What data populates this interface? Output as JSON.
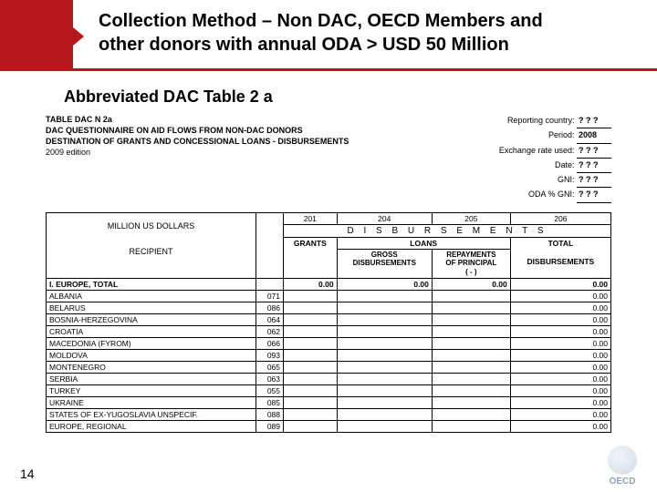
{
  "header": {
    "title_line1": "Collection Method – Non DAC, OECD Members and",
    "title_line2": "other donors with annual ODA > USD 50 Million"
  },
  "subtitle": "Abbreviated DAC Table 2 a",
  "form_header": {
    "table_label": "TABLE DAC N 2a",
    "q_line": "DAC QUESTIONNAIRE ON AID FLOWS FROM NON-DAC DONORS",
    "dest_line": "DESTINATION OF GRANTS AND CONCESSIONAL LOANS - DISBURSEMENTS",
    "edition": "2009 edition"
  },
  "meta": {
    "reporting_country_label": "Reporting country:",
    "reporting_country": "? ? ?",
    "period_label": "Period:",
    "period": "2008",
    "exchange_label": "Exchange rate used:",
    "exchange": "? ? ?",
    "date_label": "Date:",
    "date": "? ? ?",
    "gni_label": "GNI:",
    "gni": "? ? ?",
    "oda_gni_label": "ODA % GNI:",
    "oda_gni": "? ? ?"
  },
  "table": {
    "million_label": "MILLION US DOLLARS",
    "recipient_label": "RECIPIENT",
    "col_codes": [
      "201",
      "204",
      "205",
      "206"
    ],
    "disb_header": "D I S B U R S E M E N T S",
    "grants_label": "GRANTS",
    "loans_label": "LOANS",
    "total_label": "TOTAL",
    "gross_disb_label_l1": "GROSS",
    "gross_disb_label_l2": "DISBURSEMENTS",
    "repay_label_l1": "REPAYMENTS",
    "repay_label_l2": "OF PRINCIPAL",
    "repay_label_l3": "( - )",
    "disb_sub_label": "DISBURSEMENTS",
    "region": {
      "name": "I. EUROPE, TOTAL",
      "grants": "0.00",
      "gross": "0.00",
      "repay": "0.00",
      "total": "0.00"
    },
    "countries": [
      {
        "name": "ALBANIA",
        "code": "071",
        "total": "0.00"
      },
      {
        "name": "BELARUS",
        "code": "086",
        "total": "0.00"
      },
      {
        "name": "BOSNIA-HERZEGOVINA",
        "code": "064",
        "total": "0.00"
      },
      {
        "name": "CROATIA",
        "code": "062",
        "total": "0.00"
      },
      {
        "name": "MACEDONIA (FYROM)",
        "code": "066",
        "total": "0.00"
      },
      {
        "name": "MOLDOVA",
        "code": "093",
        "total": "0.00"
      },
      {
        "name": "MONTENEGRO",
        "code": "065",
        "total": "0.00"
      },
      {
        "name": "SERBIA",
        "code": "063",
        "total": "0.00"
      },
      {
        "name": "TURKEY",
        "code": "055",
        "total": "0.00"
      },
      {
        "name": "UKRAINE",
        "code": "085",
        "total": "0.00"
      },
      {
        "name": "STATES OF EX-YUGOSLAVIA UNSPECIF.",
        "code": "088",
        "total": "0.00"
      },
      {
        "name": "EUROPE, REGIONAL",
        "code": "089",
        "total": "0.00"
      }
    ]
  },
  "page_number": "14",
  "logo_text": "OECD",
  "colors": {
    "brand_red": "#b5191b",
    "text": "#000000",
    "logo": "#003366",
    "background": "#ffffff"
  },
  "typography": {
    "title_fontsize_pt": 15,
    "subtitle_fontsize_pt": 13,
    "form_fontsize_pt": 7,
    "table_fontsize_pt": 6.5,
    "font_family": "Arial"
  }
}
